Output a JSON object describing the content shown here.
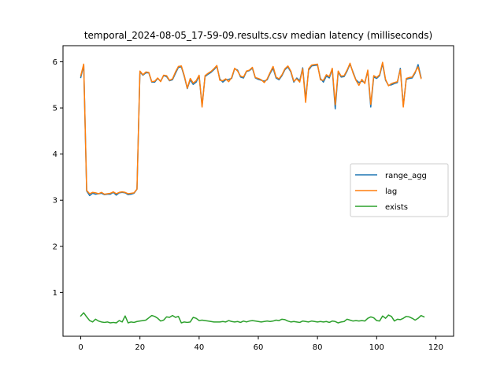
{
  "chart_data": {
    "type": "line",
    "title": "temporal_2024-08-05_17-59-09.results.csv median latency (milliseconds)",
    "xlabel": "",
    "ylabel": "",
    "xlim": [
      -6,
      126
    ],
    "ylim": [
      0.05,
      6.35
    ],
    "xticks": [
      0,
      20,
      40,
      60,
      80,
      100,
      120
    ],
    "yticks": [
      1,
      2,
      3,
      4,
      5,
      6
    ],
    "grid": false,
    "legend_position": "center-right",
    "series": [
      {
        "name": "range_agg",
        "color": "#1f77b4",
        "values": [
          5.66,
          5.93,
          3.2,
          3.1,
          3.15,
          3.13,
          3.14,
          3.15,
          3.12,
          3.13,
          3.13,
          3.17,
          3.11,
          3.16,
          3.17,
          3.16,
          3.12,
          3.13,
          3.15,
          3.24,
          5.78,
          5.71,
          5.76,
          5.76,
          5.56,
          5.56,
          5.64,
          5.58,
          5.7,
          5.68,
          5.59,
          5.61,
          5.75,
          5.88,
          5.89,
          5.68,
          5.42,
          5.61,
          5.51,
          5.56,
          5.69,
          5.05,
          5.68,
          5.73,
          5.77,
          5.83,
          5.9,
          5.63,
          5.56,
          5.61,
          5.62,
          5.64,
          5.85,
          5.82,
          5.67,
          5.65,
          5.79,
          5.81,
          5.86,
          5.65,
          5.62,
          5.6,
          5.58,
          5.61,
          5.75,
          5.86,
          5.65,
          5.61,
          5.7,
          5.83,
          5.89,
          5.78,
          5.56,
          5.65,
          5.59,
          5.87,
          5.19,
          5.82,
          5.91,
          5.92,
          5.93,
          5.64,
          5.56,
          5.69,
          5.65,
          5.84,
          4.98,
          5.78,
          5.67,
          5.68,
          5.8,
          5.95,
          5.78,
          5.61,
          5.55,
          5.58,
          5.55,
          5.8,
          5.02,
          5.67,
          5.64,
          5.7,
          5.96,
          5.6,
          5.49,
          5.5,
          5.53,
          5.55,
          5.86,
          5.05,
          5.62,
          5.64,
          5.65,
          5.76,
          5.94,
          5.66
        ],
        "x_start": 0
      },
      {
        "name": "lag",
        "color": "#ff7f0e",
        "values": [
          5.7,
          5.95,
          3.21,
          3.14,
          3.17,
          3.16,
          3.14,
          3.17,
          3.13,
          3.14,
          3.15,
          3.18,
          3.14,
          3.17,
          3.18,
          3.17,
          3.14,
          3.15,
          3.16,
          3.24,
          5.8,
          5.72,
          5.78,
          5.77,
          5.57,
          5.58,
          5.65,
          5.57,
          5.71,
          5.7,
          5.6,
          5.63,
          5.78,
          5.9,
          5.91,
          5.7,
          5.43,
          5.64,
          5.54,
          5.59,
          5.71,
          5.02,
          5.7,
          5.75,
          5.79,
          5.85,
          5.92,
          5.6,
          5.59,
          5.63,
          5.57,
          5.66,
          5.86,
          5.8,
          5.69,
          5.67,
          5.8,
          5.82,
          5.88,
          5.66,
          5.64,
          5.61,
          5.55,
          5.63,
          5.77,
          5.9,
          5.67,
          5.63,
          5.72,
          5.85,
          5.91,
          5.8,
          5.58,
          5.63,
          5.56,
          5.85,
          5.12,
          5.85,
          5.93,
          5.94,
          5.95,
          5.61,
          5.6,
          5.72,
          5.68,
          5.86,
          5.07,
          5.8,
          5.69,
          5.7,
          5.82,
          5.97,
          5.76,
          5.6,
          5.49,
          5.62,
          5.53,
          5.82,
          5.08,
          5.7,
          5.66,
          5.72,
          5.99,
          5.62,
          5.48,
          5.53,
          5.55,
          5.57,
          5.83,
          5.02,
          5.64,
          5.66,
          5.67,
          5.78,
          5.89,
          5.64
        ],
        "x_start": 0
      },
      {
        "name": "exists",
        "color": "#2ca02c",
        "values": [
          0.49,
          0.56,
          0.47,
          0.39,
          0.36,
          0.42,
          0.38,
          0.36,
          0.35,
          0.36,
          0.34,
          0.35,
          0.34,
          0.39,
          0.36,
          0.49,
          0.34,
          0.36,
          0.35,
          0.37,
          0.38,
          0.39,
          0.4,
          0.45,
          0.5,
          0.48,
          0.44,
          0.38,
          0.4,
          0.47,
          0.46,
          0.5,
          0.46,
          0.48,
          0.34,
          0.36,
          0.35,
          0.36,
          0.46,
          0.44,
          0.39,
          0.4,
          0.39,
          0.38,
          0.37,
          0.36,
          0.36,
          0.36,
          0.37,
          0.36,
          0.39,
          0.37,
          0.36,
          0.37,
          0.35,
          0.38,
          0.36,
          0.38,
          0.39,
          0.38,
          0.37,
          0.36,
          0.37,
          0.38,
          0.37,
          0.38,
          0.4,
          0.39,
          0.42,
          0.41,
          0.38,
          0.36,
          0.37,
          0.36,
          0.35,
          0.38,
          0.37,
          0.36,
          0.38,
          0.37,
          0.36,
          0.37,
          0.36,
          0.37,
          0.35,
          0.38,
          0.37,
          0.34,
          0.36,
          0.37,
          0.42,
          0.4,
          0.38,
          0.39,
          0.38,
          0.39,
          0.38,
          0.44,
          0.47,
          0.45,
          0.39,
          0.38,
          0.49,
          0.44,
          0.51,
          0.48,
          0.38,
          0.42,
          0.41,
          0.44,
          0.48,
          0.47,
          0.44,
          0.4,
          0.44,
          0.5,
          0.47
        ],
        "x_start": 0
      }
    ]
  }
}
